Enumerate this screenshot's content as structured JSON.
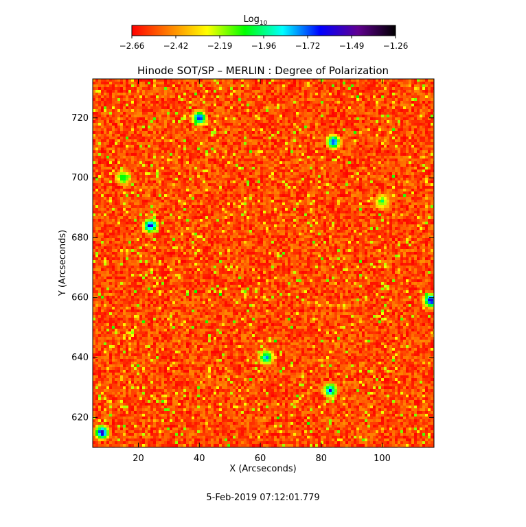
{
  "colorbar": {
    "title_base": "Log",
    "title_sub": "10",
    "ticks": [
      "−2.66",
      "−2.42",
      "−2.19",
      "−1.96",
      "−1.72",
      "−1.49",
      "−1.26"
    ]
  },
  "chart_data": {
    "type": "heatmap",
    "title": "Hinode SOT/SP – MERLIN : Degree of Polarization",
    "xlabel": "X (Arcseconds)",
    "ylabel": "Y (Arcseconds)",
    "xlim": [
      5,
      117
    ],
    "ylim": [
      610,
      733
    ],
    "x_ticks": [
      20,
      40,
      60,
      80,
      100
    ],
    "y_ticks": [
      620,
      640,
      660,
      680,
      700,
      720
    ],
    "color_scale": "log10",
    "value_range": [
      -2.66,
      -1.26
    ],
    "colormap": [
      "#ff0000",
      "#ff8000",
      "#ffff00",
      "#00ff00",
      "#00ffff",
      "#0000ff",
      "#600090",
      "#000000"
    ],
    "background_level": -2.55,
    "bright_patches": [
      {
        "x": 24,
        "y": 684,
        "value": -1.5
      },
      {
        "x": 8,
        "y": 615,
        "value": -1.45
      },
      {
        "x": 116,
        "y": 659,
        "value": -1.5
      },
      {
        "x": 40,
        "y": 720,
        "value": -1.55
      },
      {
        "x": 84,
        "y": 712,
        "value": -1.6
      },
      {
        "x": 83,
        "y": 629,
        "value": -1.65
      },
      {
        "x": 62,
        "y": 640,
        "value": -1.7
      },
      {
        "x": 15,
        "y": 700,
        "value": -1.9
      },
      {
        "x": 100,
        "y": 692,
        "value": -2.0
      }
    ]
  },
  "footer": {
    "timestamp": "5-Feb-2019 07:12:01.779"
  }
}
